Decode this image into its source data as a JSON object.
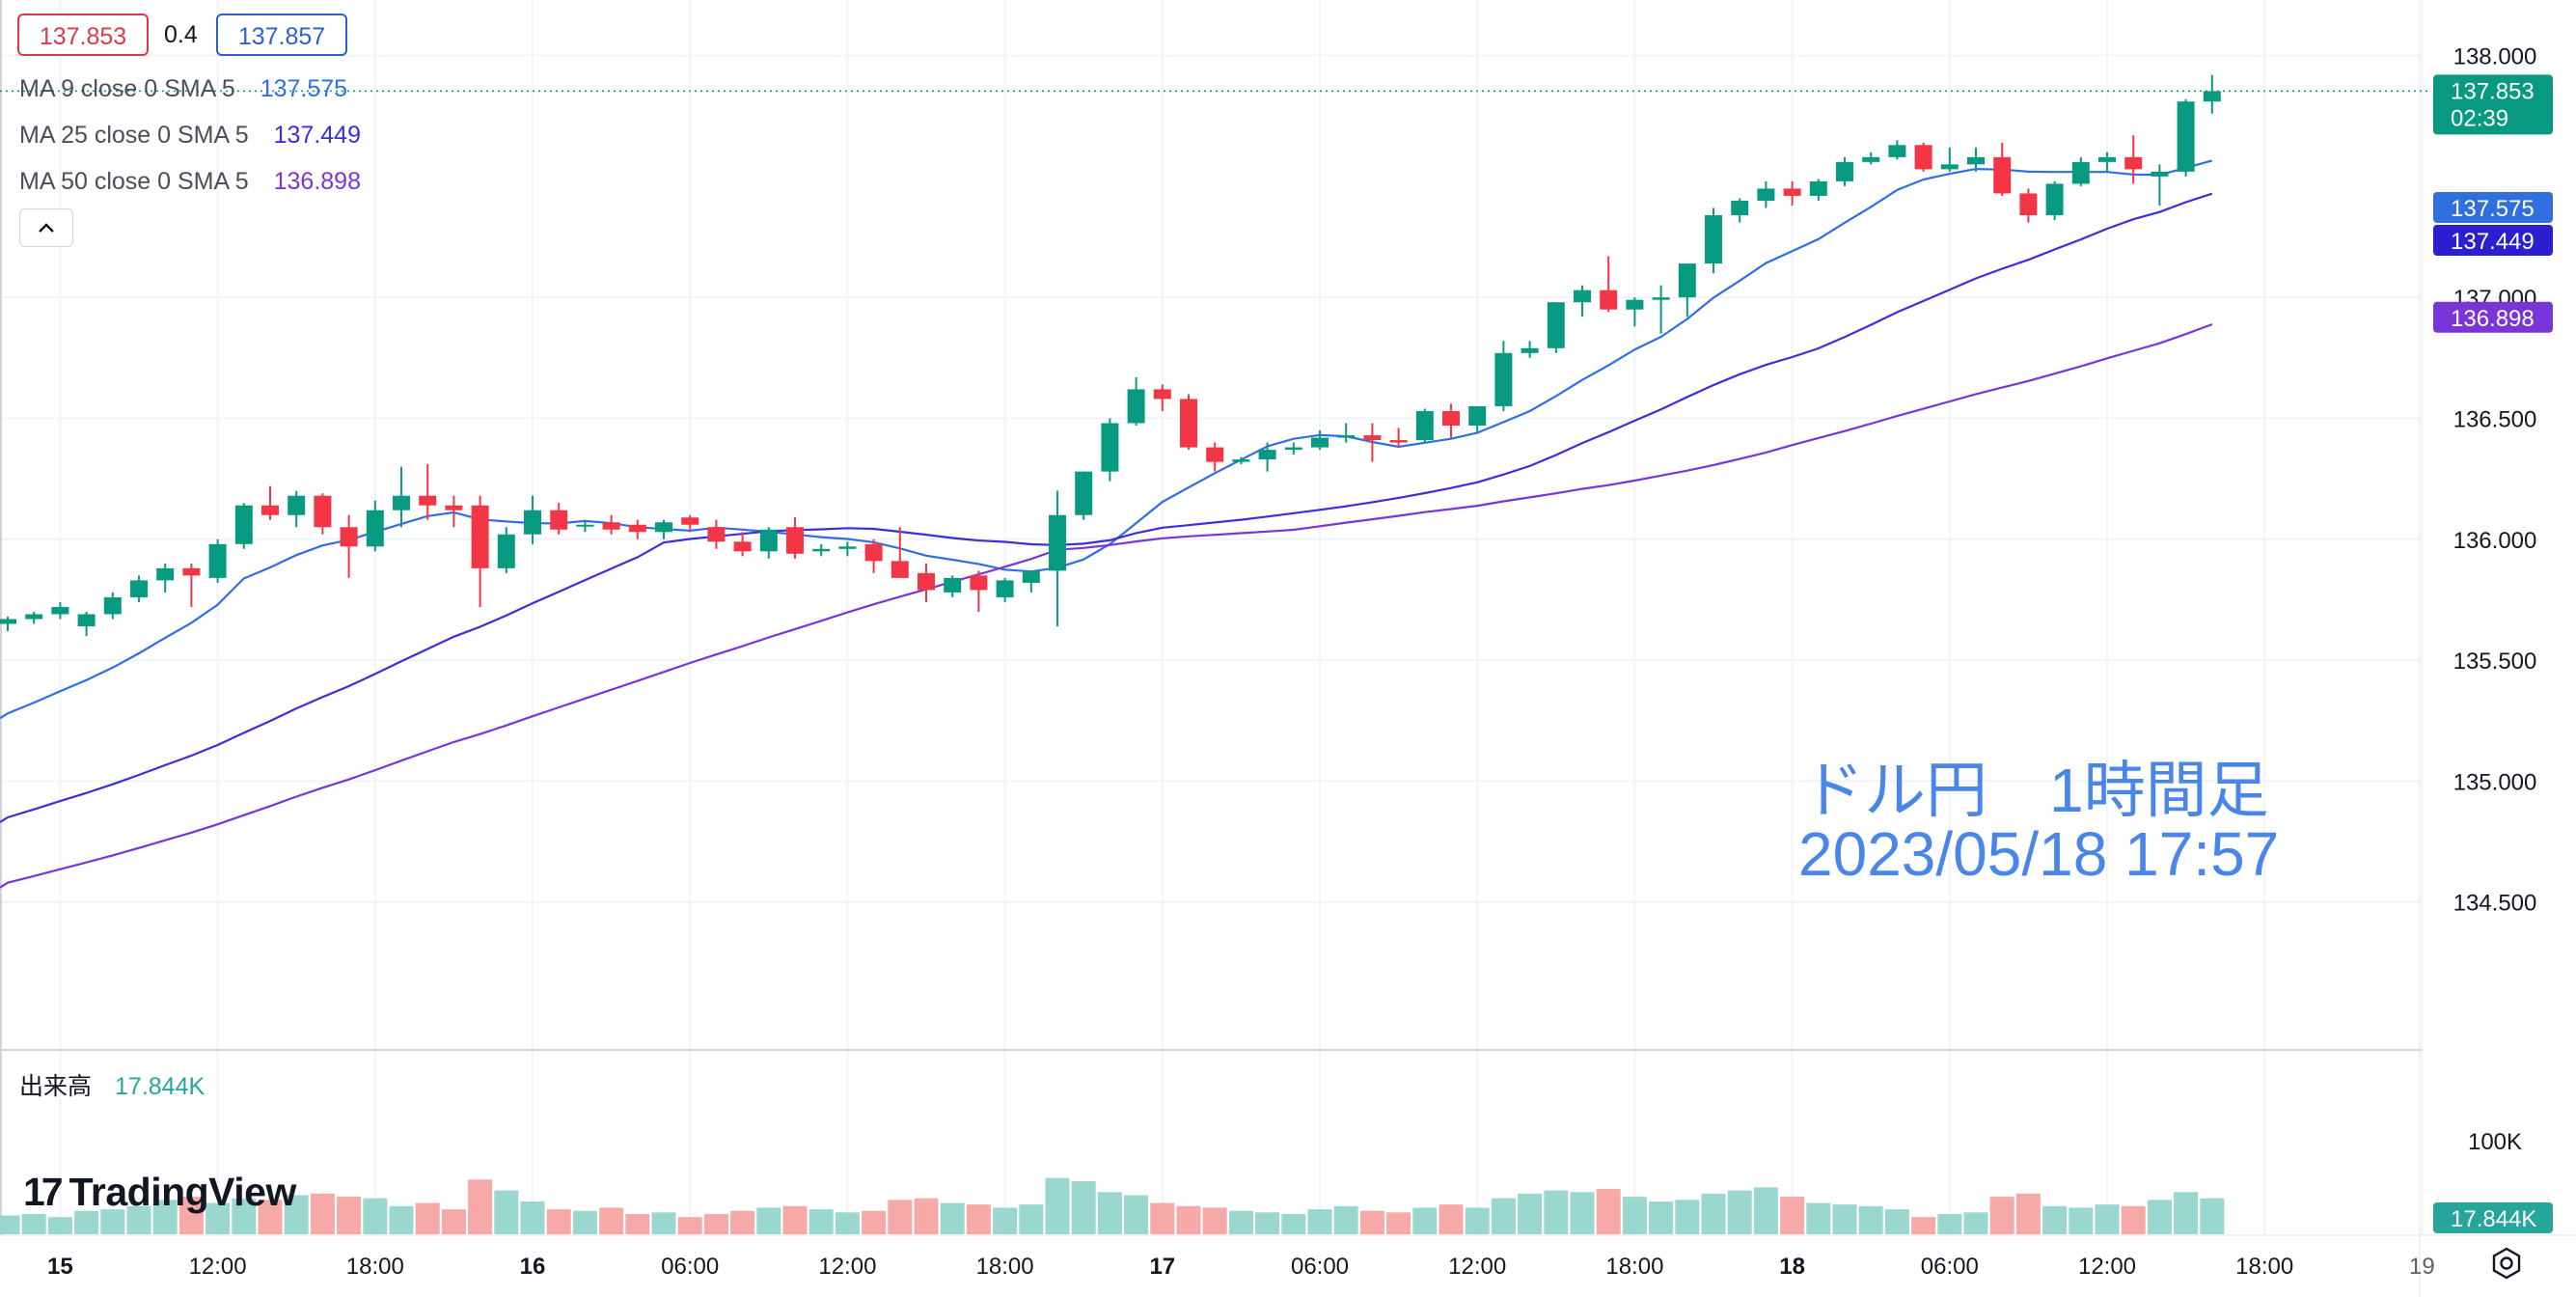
{
  "header": {
    "bid": "137.853",
    "spread": "0.4",
    "ask": "137.857",
    "colors": {
      "bid": "#d93b4b",
      "ask": "#2f5fcf"
    }
  },
  "ma_legend": [
    {
      "label": "MA 9 close 0 SMA 5",
      "value": "137.575",
      "color": "#2f6fe0"
    },
    {
      "label": "MA 25 close 0 SMA 5",
      "value": "137.449",
      "color": "#3a2fd8"
    },
    {
      "label": "MA 50 close 0 SMA 5",
      "value": "136.898",
      "color": "#7a35d8"
    }
  ],
  "collapse_glyph": "^",
  "volume": {
    "label": "出来高",
    "value": "17.844K"
  },
  "logo": {
    "mark": "17",
    "text": "TradingView"
  },
  "overlay": {
    "line1": "ドル円　1時間足",
    "line2": "2023/05/18 17:57"
  },
  "price_tags": {
    "last": {
      "value": "137.853",
      "countdown": "02:39",
      "color": "#089981"
    },
    "ma9": {
      "value": "137.575",
      "color": "#2f6fe0"
    },
    "ma25": {
      "value": "137.449",
      "color": "#2b1fd0"
    },
    "ma50": {
      "value": "136.898",
      "color": "#7a35d8"
    },
    "volume": {
      "value": "17.844K",
      "color": "#26a69a"
    }
  },
  "settings_icon": "gear-icon",
  "chart_data": {
    "type": "candlestick",
    "title": "",
    "xlabel": "",
    "ylabel": "",
    "ylim": [
      134.0,
      138.15
    ],
    "y_ticks": [
      "138.000",
      "137.000",
      "136.500",
      "136.000",
      "135.500",
      "135.000",
      "134.500"
    ],
    "volume_ticks": [
      "100K"
    ],
    "x_ticks": [
      {
        "label": "15",
        "bar": 2
      },
      {
        "label": "12:00",
        "bar": 8
      },
      {
        "label": "18:00",
        "bar": 14
      },
      {
        "label": "16",
        "bar": 20
      },
      {
        "label": "06:00",
        "bar": 26
      },
      {
        "label": "12:00",
        "bar": 32
      },
      {
        "label": "18:00",
        "bar": 38
      },
      {
        "label": "17",
        "bar": 44
      },
      {
        "label": "06:00",
        "bar": 50
      },
      {
        "label": "12:00",
        "bar": 56
      },
      {
        "label": "18:00",
        "bar": 62
      },
      {
        "label": "18",
        "bar": 68
      },
      {
        "label": "06:00",
        "bar": 74
      },
      {
        "label": "12:00",
        "bar": 80
      },
      {
        "label": "18:00",
        "bar": 86
      },
      {
        "label": "19",
        "bar": 92
      }
    ],
    "colors": {
      "up": "#089981",
      "down": "#f23645",
      "vol_up": "#9ad8cf",
      "vol_down": "#f7a9a7",
      "grid": "#f0f3fa"
    },
    "candles": [
      [
        135.65,
        135.68,
        135.62,
        135.67
      ],
      [
        135.67,
        135.7,
        135.65,
        135.69
      ],
      [
        135.69,
        135.74,
        135.67,
        135.72
      ],
      [
        135.64,
        135.7,
        135.6,
        135.69
      ],
      [
        135.69,
        135.78,
        135.67,
        135.76
      ],
      [
        135.76,
        135.85,
        135.74,
        135.83
      ],
      [
        135.83,
        135.9,
        135.78,
        135.88
      ],
      [
        135.88,
        135.9,
        135.72,
        135.85
      ],
      [
        135.84,
        136.0,
        135.82,
        135.98
      ],
      [
        135.98,
        136.15,
        135.96,
        136.14
      ],
      [
        136.14,
        136.22,
        136.08,
        136.1
      ],
      [
        136.1,
        136.2,
        136.05,
        136.18
      ],
      [
        136.18,
        136.19,
        136.02,
        136.05
      ],
      [
        136.05,
        136.1,
        135.84,
        135.97
      ],
      [
        135.97,
        136.16,
        135.95,
        136.12
      ],
      [
        136.12,
        136.3,
        136.05,
        136.18
      ],
      [
        136.18,
        136.31,
        136.08,
        136.14
      ],
      [
        136.14,
        136.18,
        136.05,
        136.12
      ],
      [
        136.14,
        136.18,
        135.72,
        135.88
      ],
      [
        135.88,
        136.05,
        135.86,
        136.02
      ],
      [
        136.02,
        136.18,
        135.98,
        136.12
      ],
      [
        136.12,
        136.15,
        136.02,
        136.04
      ],
      [
        136.06,
        136.08,
        136.03,
        136.06
      ],
      [
        136.07,
        136.1,
        136.02,
        136.04
      ],
      [
        136.06,
        136.08,
        136.0,
        136.03
      ],
      [
        136.03,
        136.08,
        136.0,
        136.07
      ],
      [
        136.09,
        136.1,
        136.03,
        136.06
      ],
      [
        136.05,
        136.08,
        135.96,
        135.99
      ],
      [
        135.99,
        136.03,
        135.93,
        135.95
      ],
      [
        135.95,
        136.05,
        135.92,
        136.04
      ],
      [
        136.05,
        136.09,
        135.92,
        135.94
      ],
      [
        135.95,
        135.98,
        135.93,
        135.96
      ],
      [
        135.96,
        135.99,
        135.93,
        135.97
      ],
      [
        135.98,
        136.0,
        135.86,
        135.91
      ],
      [
        135.91,
        136.05,
        135.85,
        135.84
      ],
      [
        135.86,
        135.9,
        135.74,
        135.79
      ],
      [
        135.78,
        135.85,
        135.76,
        135.84
      ],
      [
        135.85,
        135.87,
        135.7,
        135.79
      ],
      [
        135.76,
        135.84,
        135.74,
        135.83
      ],
      [
        135.82,
        135.87,
        135.78,
        135.87
      ],
      [
        135.87,
        136.2,
        135.64,
        136.1
      ],
      [
        136.1,
        136.28,
        136.08,
        136.28
      ],
      [
        136.28,
        136.5,
        136.24,
        136.48
      ],
      [
        136.48,
        136.67,
        136.47,
        136.62
      ],
      [
        136.62,
        136.64,
        136.53,
        136.58
      ],
      [
        136.58,
        136.6,
        136.37,
        136.38
      ],
      [
        136.38,
        136.4,
        136.28,
        136.32
      ],
      [
        136.32,
        136.34,
        136.31,
        136.33
      ],
      [
        136.33,
        136.4,
        136.28,
        136.37
      ],
      [
        136.37,
        136.4,
        136.35,
        136.38
      ],
      [
        136.38,
        136.45,
        136.37,
        136.42
      ],
      [
        136.42,
        136.48,
        136.4,
        136.43
      ],
      [
        136.43,
        136.48,
        136.32,
        136.41
      ],
      [
        136.41,
        136.46,
        136.38,
        136.4
      ],
      [
        136.41,
        136.54,
        136.4,
        136.53
      ],
      [
        136.53,
        136.56,
        136.42,
        136.47
      ],
      [
        136.47,
        136.55,
        136.44,
        136.55
      ],
      [
        136.55,
        136.82,
        136.53,
        136.77
      ],
      [
        136.77,
        136.82,
        136.75,
        136.79
      ],
      [
        136.79,
        136.98,
        136.77,
        136.98
      ],
      [
        136.98,
        137.05,
        136.92,
        137.03
      ],
      [
        137.03,
        137.17,
        136.94,
        136.95
      ],
      [
        136.95,
        137.0,
        136.88,
        136.99
      ],
      [
        136.99,
        137.05,
        136.85,
        137.0
      ],
      [
        137.0,
        137.12,
        136.92,
        137.14
      ],
      [
        137.14,
        137.37,
        137.1,
        137.34
      ],
      [
        137.34,
        137.41,
        137.31,
        137.4
      ],
      [
        137.4,
        137.48,
        137.37,
        137.45
      ],
      [
        137.45,
        137.48,
        137.38,
        137.42
      ],
      [
        137.42,
        137.49,
        137.4,
        137.48
      ],
      [
        137.48,
        137.58,
        137.46,
        137.56
      ],
      [
        137.56,
        137.6,
        137.55,
        137.58
      ],
      [
        137.58,
        137.65,
        137.57,
        137.63
      ],
      [
        137.63,
        137.64,
        137.52,
        137.53
      ],
      [
        137.53,
        137.62,
        137.52,
        137.55
      ],
      [
        137.55,
        137.62,
        137.52,
        137.58
      ],
      [
        137.58,
        137.64,
        137.42,
        137.43
      ],
      [
        137.43,
        137.45,
        137.31,
        137.34
      ],
      [
        137.34,
        137.48,
        137.32,
        137.47
      ],
      [
        137.47,
        137.58,
        137.46,
        137.56
      ],
      [
        137.56,
        137.6,
        137.52,
        137.58
      ],
      [
        137.58,
        137.67,
        137.47,
        137.53
      ],
      [
        137.5,
        137.55,
        137.38,
        137.52
      ],
      [
        137.52,
        137.82,
        137.5,
        137.81
      ],
      [
        137.81,
        137.92,
        137.76,
        137.853
      ]
    ],
    "volume_values": [
      12,
      13,
      11,
      15,
      16,
      18,
      22,
      24,
      20,
      23,
      22,
      25,
      26,
      24,
      23,
      18,
      20,
      16,
      35,
      28,
      21,
      16,
      15,
      17,
      13,
      14,
      11,
      13,
      15,
      17,
      18,
      16,
      14,
      15,
      22,
      23,
      20,
      19,
      17,
      19,
      36,
      34,
      27,
      25,
      20,
      18,
      17,
      15,
      14,
      13,
      16,
      18,
      15,
      14,
      17,
      19,
      17,
      23,
      26,
      28,
      27,
      29,
      24,
      21,
      22,
      26,
      28,
      30,
      24,
      20,
      19,
      18,
      16,
      11,
      13,
      14,
      24,
      26,
      18,
      17,
      19,
      18,
      22,
      27,
      23
    ]
  }
}
